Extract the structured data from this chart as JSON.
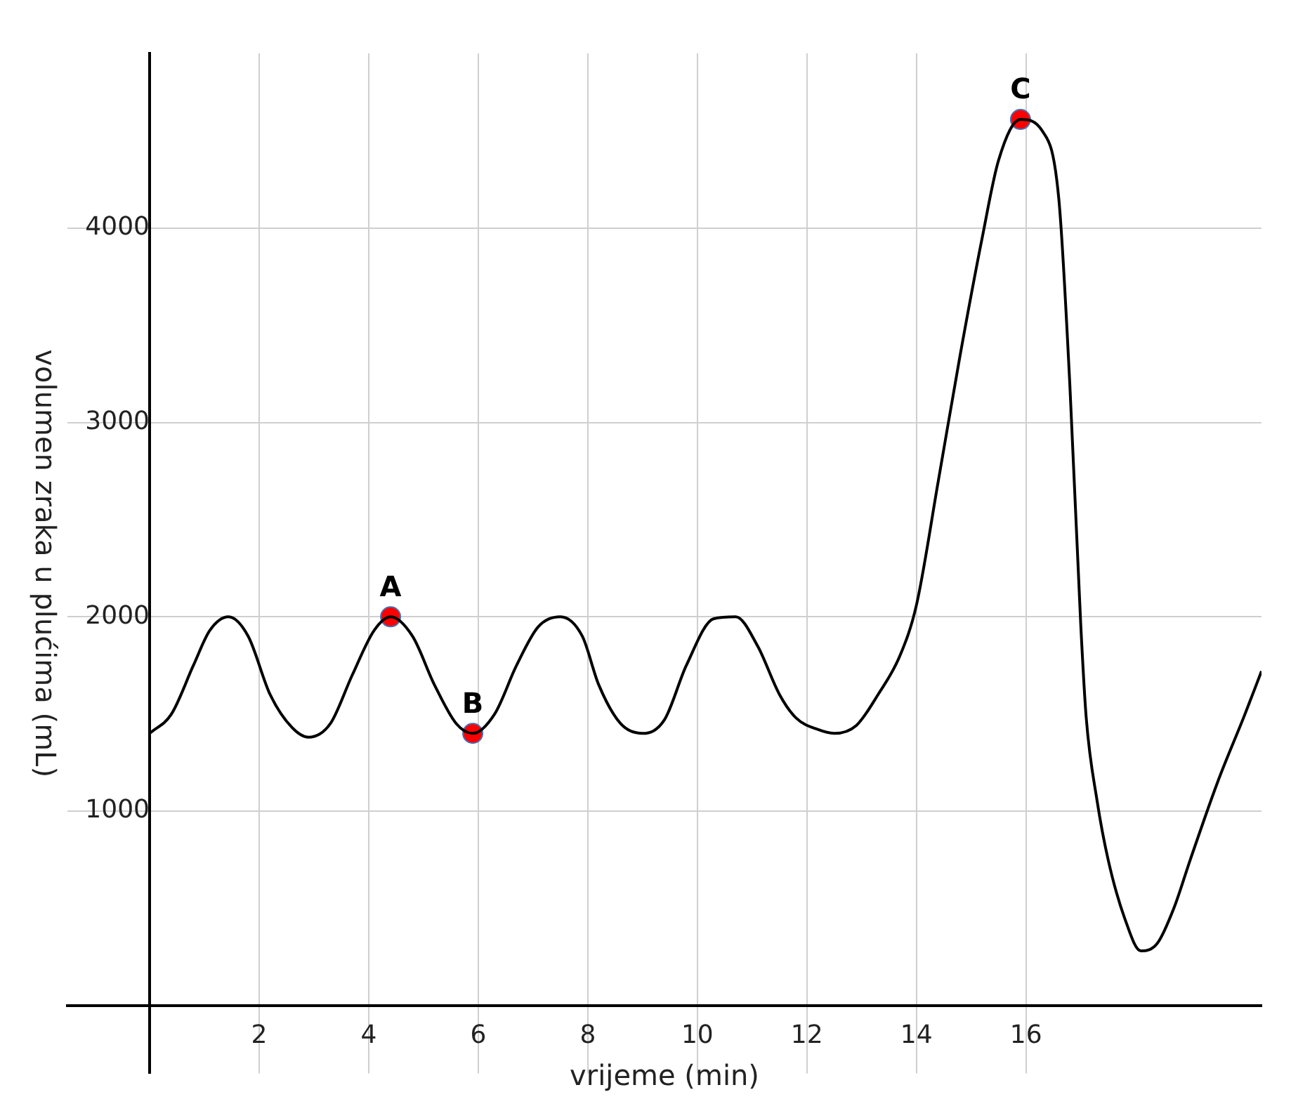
{
  "chart_data": {
    "type": "line",
    "xlabel": "vrijeme (min)",
    "ylabel": "volumen zraka u plućima (mL)",
    "xlim": [
      -1.5,
      20.3
    ],
    "ylim": [
      -350,
      4900
    ],
    "xticks": [
      2,
      4,
      6,
      8,
      10,
      12,
      14,
      16
    ],
    "yticks": [
      1000,
      2000,
      3000,
      4000
    ],
    "grid": true,
    "legend": false,
    "series": [
      {
        "color": "#000000",
        "marker": "none",
        "x": [
          0,
          0.4,
          0.8,
          1.1,
          1.44,
          1.8,
          2.2,
          2.6,
          2.9,
          3.3,
          3.7,
          4.1,
          4.4,
          4.8,
          5.2,
          5.6,
          5.9,
          6.3,
          6.7,
          7.1,
          7.5,
          7.9,
          8.2,
          8.6,
          9.0,
          9.4,
          9.8,
          10.3,
          10.7,
          11.1,
          11.5,
          11.8,
          12.2,
          12.5,
          12.9,
          13.3,
          13.7,
          14.0,
          14.4,
          14.8,
          15.2,
          15.5,
          15.9,
          16.3,
          16.6,
          16.8,
          17.0,
          17.1,
          17.3,
          17.5,
          17.8,
          18.1,
          18.4,
          18.7,
          19.0,
          19.5,
          20.0,
          20.3
        ],
        "values": [
          1400,
          1500,
          1750,
          1930,
          2000,
          1900,
          1600,
          1430,
          1380,
          1450,
          1700,
          1930,
          2000,
          1900,
          1650,
          1450,
          1400,
          1500,
          1750,
          1950,
          2000,
          1900,
          1650,
          1450,
          1400,
          1470,
          1750,
          1990,
          2000,
          1850,
          1600,
          1480,
          1420,
          1400,
          1440,
          1600,
          1800,
          2060,
          2700,
          3350,
          3950,
          4350,
          4560,
          4500,
          4150,
          3200,
          1960,
          1480,
          1050,
          750,
          450,
          280,
          320,
          500,
          750,
          1150,
          1500,
          1720
        ]
      },
      {
        "type": "scatter",
        "color": "#ff0000",
        "marker": "circle",
        "x": [
          4.4,
          5.9,
          15.9
        ],
        "values": [
          2000,
          1400,
          4560
        ]
      }
    ],
    "annotations": [
      {
        "text": "A",
        "x": 4.4,
        "y": 2000
      },
      {
        "text": "B",
        "x": 5.9,
        "y": 1400
      },
      {
        "text": "C",
        "x": 15.9,
        "y": 4560
      }
    ]
  }
}
